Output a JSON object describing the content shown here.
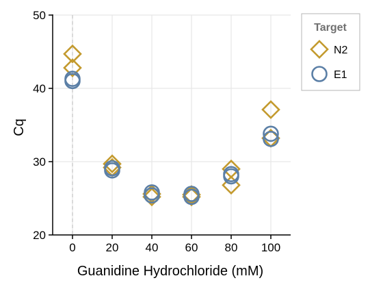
{
  "chart_data": {
    "type": "scatter",
    "xlabel": "Guanidine Hydrochloride (mM)",
    "ylabel": "Cq",
    "xlim": [
      -10,
      110
    ],
    "ylim": [
      20,
      50
    ],
    "x_ticks": [
      "0",
      "20",
      "40",
      "60",
      "80",
      "100"
    ],
    "y_ticks": [
      "20",
      "30",
      "40",
      "50"
    ],
    "grid": true,
    "reference_line_x": 0,
    "legend": {
      "title": "Target",
      "placement": "right"
    },
    "series": [
      {
        "name": "N2",
        "marker": "diamond",
        "color": "#C39A2E",
        "points": [
          {
            "x": 0,
            "y": 44.7
          },
          {
            "x": 0,
            "y": 42.8
          },
          {
            "x": 20,
            "y": 29.7
          },
          {
            "x": 20,
            "y": 29.2
          },
          {
            "x": 40,
            "y": 25.6
          },
          {
            "x": 40,
            "y": 25.2
          },
          {
            "x": 60,
            "y": 25.5
          },
          {
            "x": 60,
            "y": 25.2
          },
          {
            "x": 80,
            "y": 29.0
          },
          {
            "x": 80,
            "y": 26.8
          },
          {
            "x": 100,
            "y": 37.1
          },
          {
            "x": 100,
            "y": 33.2
          }
        ]
      },
      {
        "name": "E1",
        "marker": "circle",
        "color": "#5B7FA6",
        "points": [
          {
            "x": 0,
            "y": 41.3
          },
          {
            "x": 0,
            "y": 41.0
          },
          {
            "x": 20,
            "y": 29.1
          },
          {
            "x": 20,
            "y": 28.8
          },
          {
            "x": 40,
            "y": 25.8
          },
          {
            "x": 40,
            "y": 25.4
          },
          {
            "x": 60,
            "y": 25.6
          },
          {
            "x": 60,
            "y": 25.2
          },
          {
            "x": 80,
            "y": 28.3
          },
          {
            "x": 80,
            "y": 28.0
          },
          {
            "x": 100,
            "y": 33.8
          },
          {
            "x": 100,
            "y": 33.1
          }
        ]
      }
    ]
  }
}
